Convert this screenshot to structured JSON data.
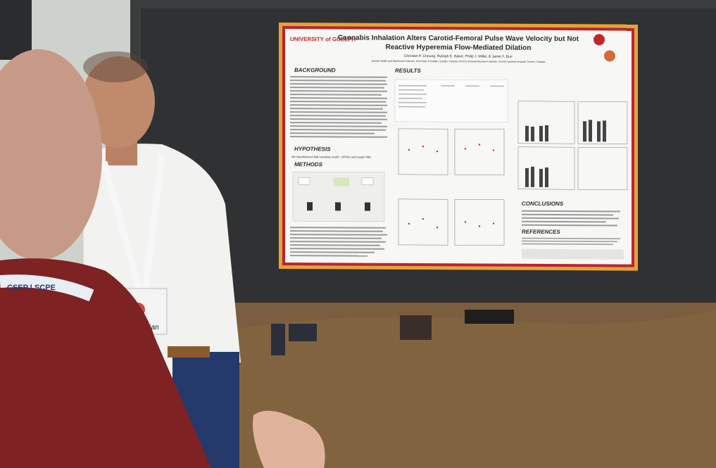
{
  "poster": {
    "university": "UNIVERSITY of GUELPH",
    "title": [
      "Cannabis Inhalation Alters Carotid-Femoral Pulse Wave Velocity but Not",
      "Reactive Hyperemia Flow-Mediated Dilation"
    ],
    "authors": "Christian P. Cheung, Ryleigh E. Baker, Philip J. Millar, & Jamie F. Burr",
    "affiliation": "Human Health and Nutritional Sciences, University of Guelph, Guelph, Canada; Toronto General Research Institute, Toronto General Hospital, Toronto, Canada",
    "sections": {
      "background": "BACKGROUND",
      "results": "RESULTS",
      "hypothesis": "HYPOTHESIS",
      "methods": "METHODS",
      "conclusions": "CONCLUSIONS",
      "references": "REFERENCES"
    },
    "hypothesis_text": "We hypothesized that cannabis would ↑ cfPWV and impair FMD."
  },
  "badge": {
    "name": "Christian"
  },
  "lanyard": "CSEP | SCPE"
}
